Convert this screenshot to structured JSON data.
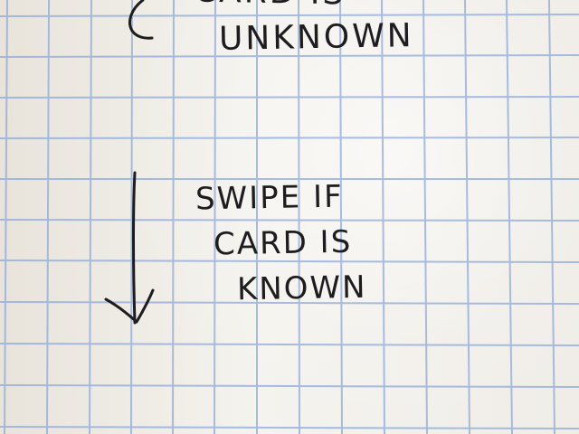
{
  "scene": {
    "paper": "grid-paper",
    "ink_color": "#1d1d20",
    "grid_color": "#8aa6d8"
  },
  "top_note": {
    "partial_text": "CARD IS",
    "word": "UNKNOWN"
  },
  "swipe_note": {
    "line_1": "SWIPE IF",
    "line_2": "CARD IS",
    "line_3": "KNOWN"
  },
  "icons": {
    "curve_mark": "curve-stroke",
    "down_arrow": "arrow-down"
  }
}
